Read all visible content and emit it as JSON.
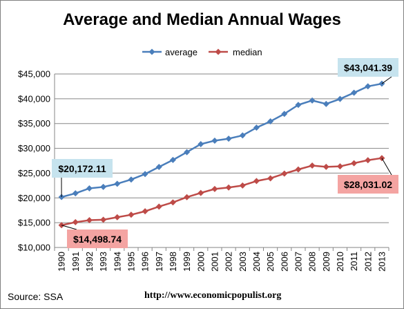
{
  "chart_data": {
    "type": "line",
    "title": "Average and Median Annual Wages",
    "x": [
      1990,
      1991,
      1992,
      1993,
      1994,
      1995,
      1996,
      1997,
      1998,
      1999,
      2000,
      2001,
      2002,
      2003,
      2004,
      2005,
      2006,
      2007,
      2008,
      2009,
      2010,
      2011,
      2012,
      2013
    ],
    "series": [
      {
        "name": "average",
        "color": "#4a7ebb",
        "values": [
          20172.11,
          20923,
          21930,
          22210,
          22850,
          23705,
          24810,
          26250,
          27650,
          29230,
          30850,
          31550,
          31950,
          32600,
          34170,
          35440,
          36950,
          38760,
          39650,
          38960,
          39960,
          41210,
          42500,
          43041.39
        ]
      },
      {
        "name": "median",
        "color": "#be4b48",
        "values": [
          14498.74,
          15100,
          15500,
          15600,
          16100,
          16600,
          17300,
          18250,
          19100,
          20150,
          21000,
          21800,
          22100,
          22500,
          23400,
          23950,
          24900,
          25740,
          26520,
          26260,
          26360,
          27000,
          27600,
          28031.02
        ]
      }
    ],
    "ylim": [
      10000,
      45000
    ],
    "yticks": [
      "$10,000",
      "$15,000",
      "$20,000",
      "$25,000",
      "$30,000",
      "$35,000",
      "$40,000",
      "$45,000"
    ],
    "grid": true,
    "legend": "top",
    "annotations": [
      {
        "text": "$20,172.11",
        "series": 0,
        "point": 0,
        "bg": "#c6e3ee"
      },
      {
        "text": "$43,041.39",
        "series": 0,
        "point": 23,
        "bg": "#c6e3ee"
      },
      {
        "text": "$14,498.74",
        "series": 1,
        "point": 0,
        "bg": "#f4a4a2"
      },
      {
        "text": "$28,031.02",
        "series": 1,
        "point": 23,
        "bg": "#f4a4a2"
      }
    ]
  },
  "footer": {
    "source": "Source: SSA",
    "url": "http://www.economicpopulist.org"
  }
}
